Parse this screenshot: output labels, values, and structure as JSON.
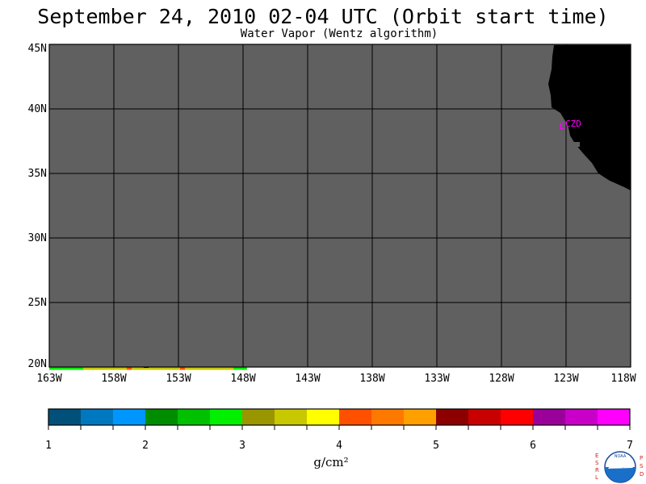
{
  "header": {
    "title": "September 24, 2010  02-04 UTC  (Orbit start time)",
    "subtitle": "Water Vapor (Wentz algorithm)"
  },
  "map": {
    "lat_labels": [
      "45N",
      "40N",
      "35N",
      "30N",
      "25N",
      "20N"
    ],
    "lon_labels": [
      "163W",
      "158W",
      "153W",
      "148W",
      "143W",
      "138W",
      "133W",
      "128W",
      "123W",
      "118W"
    ],
    "station_label": "CZD",
    "no_data_color": "#606060",
    "land_color": "#000000",
    "station_color": "#ff00ff"
  },
  "colorbar": {
    "tick_labels": [
      "1",
      "2",
      "3",
      "4",
      "5",
      "6",
      "7"
    ],
    "units": "g/cm²",
    "colors": [
      "#00507a",
      "#0078c0",
      "#0096ff",
      "#008c00",
      "#00c000",
      "#00f000",
      "#9a9600",
      "#c8c800",
      "#ffff00",
      "#ff5000",
      "#ff7800",
      "#ffa000",
      "#8c0000",
      "#c80000",
      "#ff0000",
      "#9a009a",
      "#c800c8",
      "#ff00ff"
    ]
  },
  "logo": {
    "left_letters": "ESRL",
    "right_letters": "PSD",
    "center_text": "NOAA"
  }
}
